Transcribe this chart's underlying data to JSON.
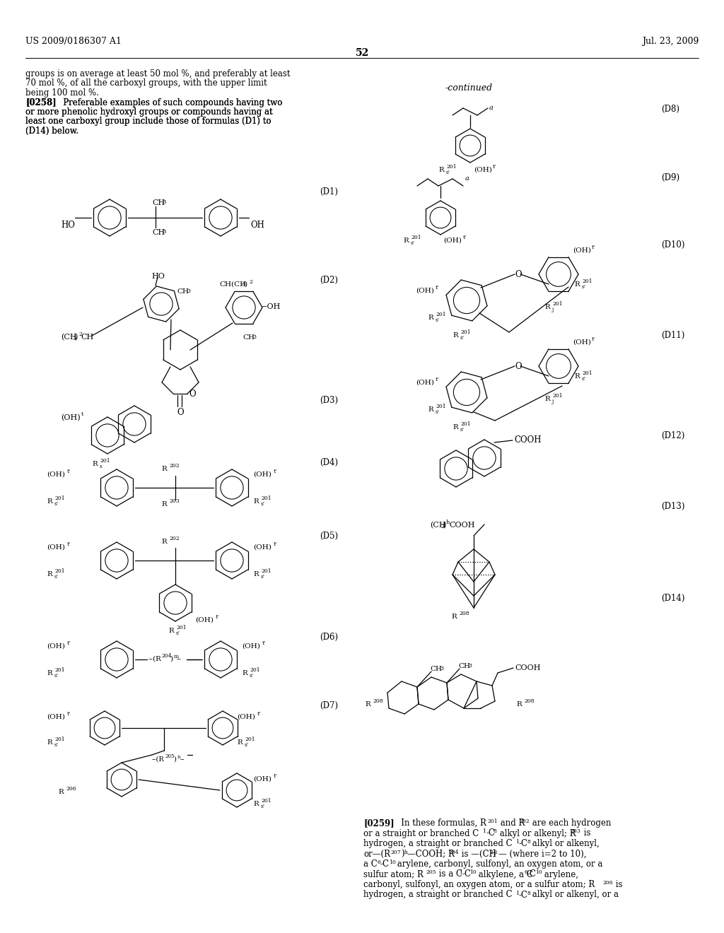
{
  "page_number": "52",
  "patent_number": "US 2009/0186307 A1",
  "patent_date": "Jul. 23, 2009",
  "background_color": "#ffffff",
  "body_text_left": [
    "groups is on average at least 50 mol %, and preferably at least",
    "70 mol %, of all the carboxyl groups, with the upper limit",
    "being 100 mol %.",
    "[0258]    Preferable examples of such compounds having two",
    "or more phenolic hydroxyl groups or compounds having at",
    "least one carboxyl group include those of formulas (D1) to",
    "(D14) below."
  ],
  "continued_label": "-continued",
  "body_text_right": [
    "[0259]    In these formulas, R201 and R202 are each hydrogen",
    "or a straight or branched C1-C8 alkyl or alkenyl; R203 is",
    "hydrogen, a straight or branched C1-C8 alkyl or alkenyl,",
    "or --(R207)h--COOH; R204 is --(CH2)i-- (where i=2 to 10),",
    "a C6-C10 arylene, carbonyl, sulfonyl, an oxygen atom, or a",
    "sulfur atom; R205 is a C1-C10 alkylene, a C6-C10 arylene,",
    "carbonyl, sulfonyl, an oxygen atom, or a sulfur atom; R206 is",
    "hydrogen, a straight or branched C1-C8 alkyl or alkenyl, or a"
  ]
}
